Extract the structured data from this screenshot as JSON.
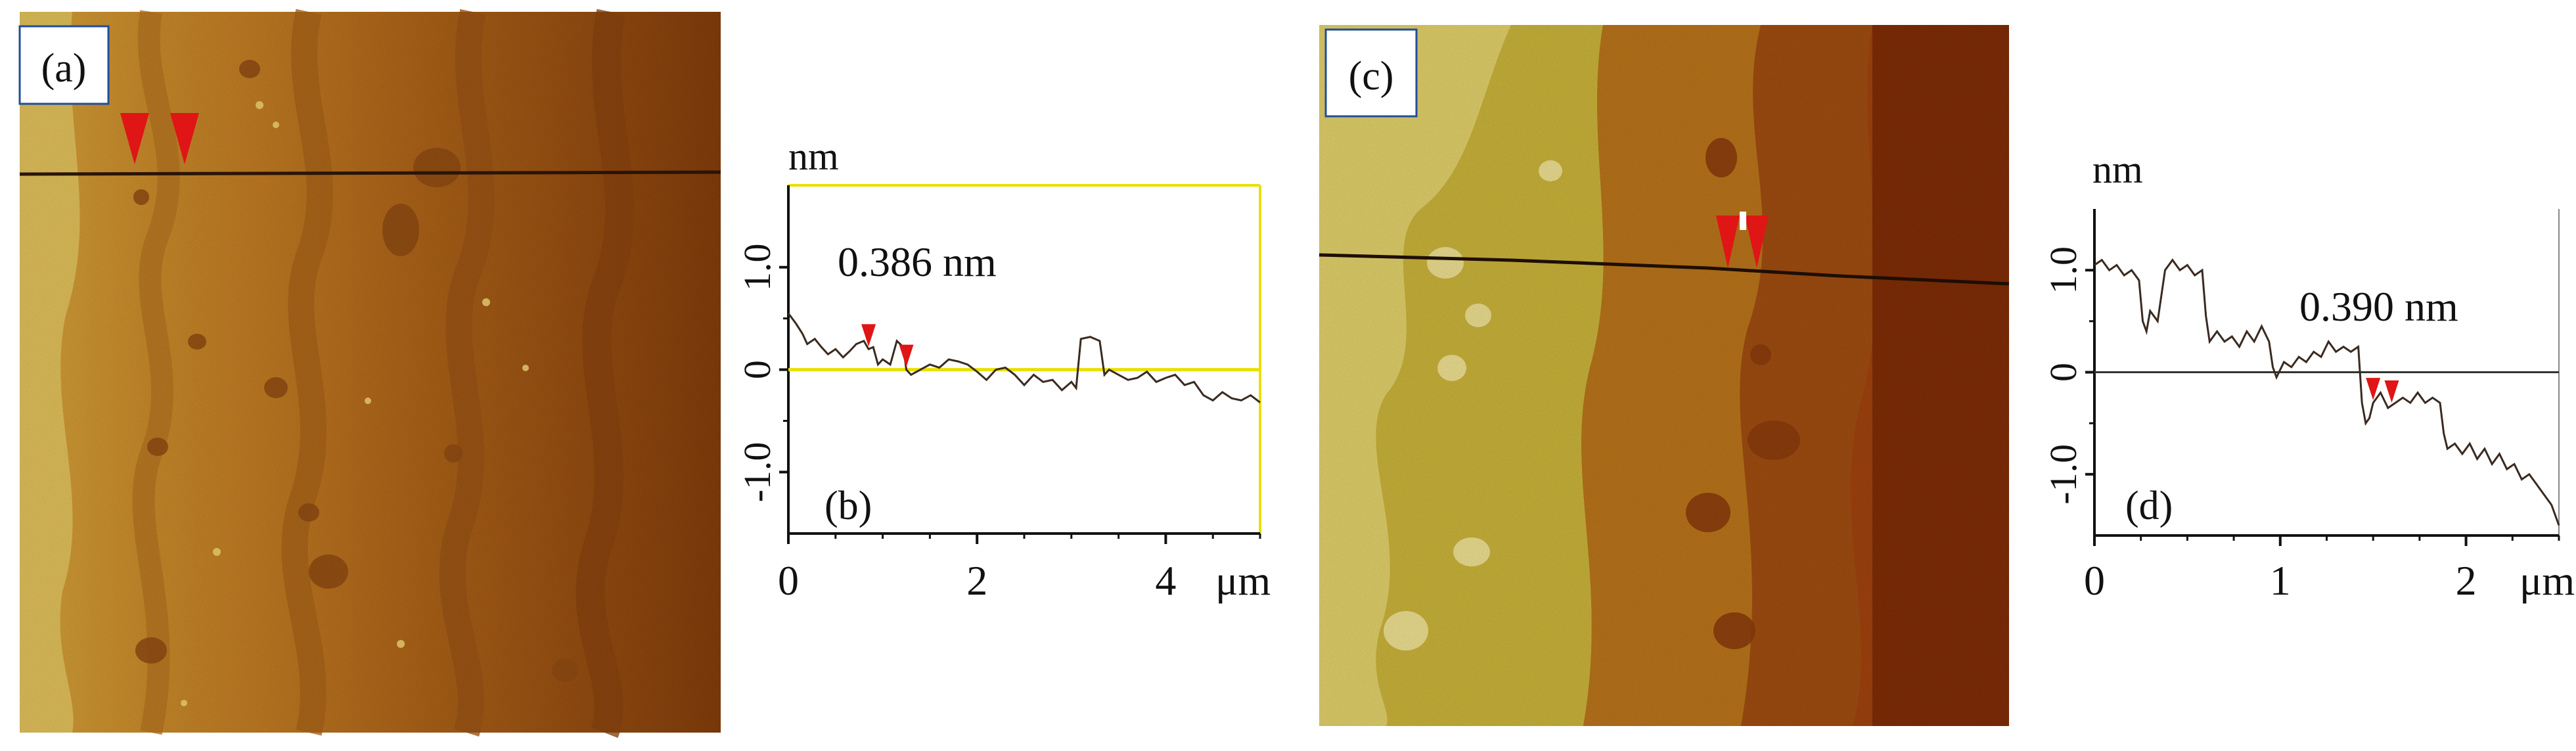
{
  "panels": {
    "a": "(a)",
    "b": "(b)",
    "c": "(c)",
    "d": "(d)"
  },
  "colors": {
    "axis": "#111111",
    "profile": "#3a2a20",
    "marker": "#e01515",
    "zero_line_b": "#e8e000",
    "zero_line_d": "#333333",
    "frame_b": "#e8e000",
    "label_box": "#1f4e9c"
  },
  "chart_data": [
    {
      "id": "b",
      "type": "line",
      "ylabel_unit": "nm",
      "xunit": "μm",
      "annotation": "0.386 nm",
      "xlim": [
        0,
        5
      ],
      "ylim": [
        -1.6,
        1.8
      ],
      "xticks": [
        0,
        2,
        4
      ],
      "xtick_labels": [
        "0",
        "2",
        "4"
      ],
      "yticks": [
        1.0,
        0,
        -1.0
      ],
      "ytick_labels": [
        "1.0",
        "0",
        "-1.0"
      ],
      "markers_x": [
        0.85,
        1.25
      ],
      "series": [
        {
          "x": [
            0,
            0.08,
            0.15,
            0.2,
            0.28,
            0.35,
            0.42,
            0.5,
            0.58,
            0.65,
            0.72,
            0.8,
            0.85,
            0.9,
            0.95,
            1.0,
            1.08,
            1.15,
            1.22,
            1.25,
            1.3,
            1.4,
            1.5,
            1.6,
            1.7,
            1.8,
            1.9,
            2.0,
            2.1,
            2.2,
            2.3,
            2.4,
            2.5,
            2.6,
            2.7,
            2.8,
            2.9,
            3.0,
            3.05,
            3.1,
            3.2,
            3.3,
            3.35,
            3.4,
            3.5,
            3.6,
            3.7,
            3.8,
            3.9,
            4.0,
            4.1,
            4.2,
            4.3,
            4.4,
            4.5,
            4.6,
            4.7,
            4.8,
            4.9,
            5.0
          ],
          "y": [
            0.55,
            0.45,
            0.35,
            0.25,
            0.3,
            0.22,
            0.15,
            0.2,
            0.12,
            0.18,
            0.25,
            0.28,
            0.2,
            0.22,
            0.05,
            0.1,
            0.05,
            0.28,
            0.22,
            0.0,
            -0.05,
            0.0,
            0.05,
            0.02,
            0.1,
            0.08,
            0.05,
            -0.02,
            -0.1,
            0.0,
            0.02,
            -0.05,
            -0.15,
            -0.05,
            -0.12,
            -0.1,
            -0.2,
            -0.12,
            -0.18,
            0.3,
            0.32,
            0.28,
            -0.05,
            0.0,
            -0.05,
            -0.1,
            -0.08,
            -0.02,
            -0.12,
            -0.08,
            -0.05,
            -0.15,
            -0.12,
            -0.25,
            -0.3,
            -0.22,
            -0.28,
            -0.3,
            -0.25,
            -0.32
          ]
        }
      ]
    },
    {
      "id": "d",
      "type": "line",
      "ylabel_unit": "nm",
      "xunit": "μm",
      "annotation": "0.390 nm",
      "xlim": [
        0,
        2.5
      ],
      "ylim": [
        -1.6,
        1.6
      ],
      "xticks": [
        0,
        1,
        2
      ],
      "xtick_labels": [
        "0",
        "1",
        "2"
      ],
      "yticks": [
        1.0,
        0,
        -1.0
      ],
      "ytick_labels": [
        "1.0",
        "0",
        "-1.0"
      ],
      "markers_x": [
        1.5,
        1.6
      ],
      "series": [
        {
          "x": [
            0,
            0.04,
            0.08,
            0.12,
            0.16,
            0.2,
            0.24,
            0.26,
            0.28,
            0.3,
            0.34,
            0.38,
            0.42,
            0.46,
            0.5,
            0.54,
            0.58,
            0.6,
            0.62,
            0.66,
            0.7,
            0.74,
            0.78,
            0.82,
            0.86,
            0.9,
            0.94,
            0.96,
            0.98,
            1.02,
            1.06,
            1.1,
            1.14,
            1.18,
            1.22,
            1.26,
            1.3,
            1.34,
            1.38,
            1.42,
            1.44,
            1.46,
            1.48,
            1.5,
            1.54,
            1.58,
            1.62,
            1.66,
            1.7,
            1.74,
            1.78,
            1.82,
            1.86,
            1.88,
            1.9,
            1.94,
            1.98,
            2.02,
            2.06,
            2.1,
            2.14,
            2.18,
            2.22,
            2.26,
            2.3,
            2.34,
            2.38,
            2.42,
            2.46,
            2.5
          ],
          "y": [
            1.05,
            1.1,
            1.0,
            1.05,
            0.95,
            1.0,
            0.9,
            0.5,
            0.4,
            0.6,
            0.5,
            1.0,
            1.1,
            1.0,
            1.05,
            0.95,
            1.0,
            0.55,
            0.3,
            0.4,
            0.3,
            0.35,
            0.25,
            0.4,
            0.3,
            0.45,
            0.3,
            0.05,
            -0.05,
            0.1,
            0.05,
            0.15,
            0.1,
            0.2,
            0.15,
            0.3,
            0.2,
            0.25,
            0.2,
            0.25,
            -0.3,
            -0.5,
            -0.45,
            -0.3,
            -0.2,
            -0.35,
            -0.3,
            -0.25,
            -0.3,
            -0.2,
            -0.3,
            -0.25,
            -0.3,
            -0.6,
            -0.75,
            -0.7,
            -0.8,
            -0.7,
            -0.85,
            -0.75,
            -0.9,
            -0.8,
            -0.95,
            -0.9,
            -1.05,
            -1.0,
            -1.1,
            -1.2,
            -1.3,
            -1.5
          ]
        }
      ]
    }
  ]
}
